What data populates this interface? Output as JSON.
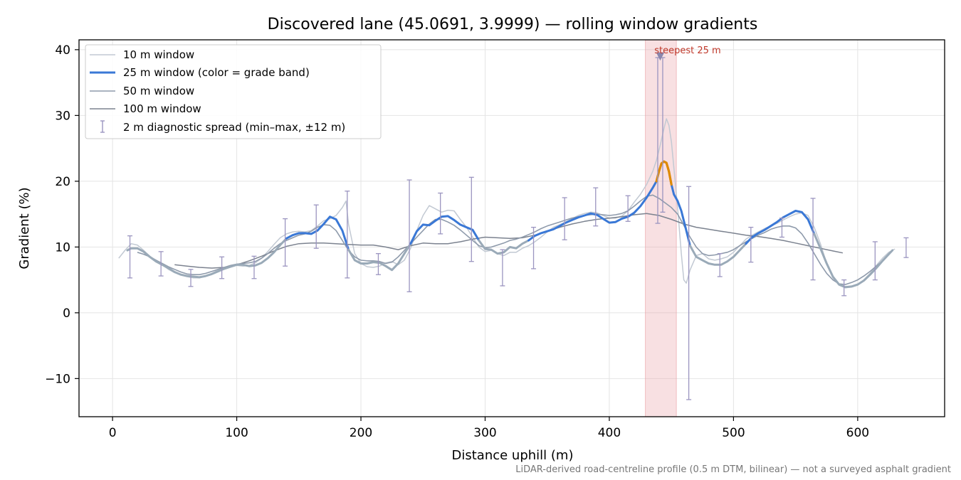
{
  "chart_data": {
    "type": "line",
    "title": "Discovered lane (45.0691, 3.9999) — rolling window gradients",
    "xlabel": "Distance uphill (m)",
    "ylabel": "Gradient (%)",
    "xlim": [
      -27,
      670
    ],
    "ylim": [
      -15.8,
      41.5
    ],
    "x_ticks": [
      0,
      100,
      200,
      300,
      400,
      500,
      600
    ],
    "y_ticks": [
      -10,
      0,
      10,
      20,
      30,
      40
    ],
    "x_tick_labels": [
      "0",
      "100",
      "200",
      "300",
      "400",
      "500",
      "600"
    ],
    "y_tick_labels": [
      "−10",
      "0",
      "10",
      "20",
      "30",
      "40"
    ],
    "grid": true,
    "legend_position": "top-left",
    "colors": {
      "w10": "#c2c9d3",
      "w25_main": "#3a78d6",
      "w25_base": "#9aaab8",
      "w25_steep": "#e08a00",
      "w50": "#8e9aab",
      "w100": "#7b828f",
      "errorbar": "#9b95c0",
      "steep_band": "#e9a0a4"
    },
    "legend": [
      {
        "label": "10 m window",
        "style": "thin-line",
        "color": "#c2c9d3"
      },
      {
        "label": "25 m window (color = grade band)",
        "style": "thick-line",
        "color": "#3a78d6"
      },
      {
        "label": "50 m window",
        "style": "thin-line",
        "color": "#8e9aab"
      },
      {
        "label": "100 m window",
        "style": "thin-line",
        "color": "#7b828f"
      },
      {
        "label": "2 m diagnostic spread (min–max, ±12 m)",
        "style": "errorbar",
        "color": "#9b95c0"
      }
    ],
    "steepest_band": {
      "x_start": 429,
      "x_end": 454,
      "label": "steepest 25 m",
      "marker_x": 441,
      "marker_y": 39.0
    },
    "series": [
      {
        "key": "w10",
        "x": [
          5,
          10,
          15,
          20,
          25,
          30,
          35,
          40,
          45,
          50,
          55,
          60,
          65,
          70,
          75,
          80,
          85,
          90,
          95,
          100,
          105,
          110,
          115,
          120,
          125,
          130,
          135,
          140,
          145,
          150,
          155,
          160,
          165,
          170,
          175,
          180,
          185,
          188,
          190,
          195,
          200,
          205,
          210,
          215,
          220,
          225,
          230,
          235,
          240,
          245,
          250,
          255,
          260,
          265,
          270,
          275,
          280,
          285,
          290,
          295,
          300,
          305,
          310,
          315,
          320,
          325,
          330,
          335,
          340,
          345,
          350,
          355,
          360,
          365,
          370,
          375,
          380,
          385,
          390,
          395,
          400,
          405,
          410,
          415,
          420,
          425,
          430,
          435,
          438,
          441,
          444,
          446,
          448,
          450,
          452,
          455,
          458,
          460,
          462,
          465,
          470,
          475,
          480,
          485,
          490,
          495,
          500,
          505,
          510,
          515,
          520,
          525,
          530,
          535,
          540,
          545,
          550,
          555,
          560,
          565,
          570,
          575,
          580,
          585,
          590,
          595,
          600,
          605,
          610,
          615,
          620,
          625,
          630
        ],
        "y": [
          8.3,
          9.5,
          10.5,
          10.3,
          9.5,
          8.6,
          8.0,
          7.3,
          6.6,
          6.1,
          5.8,
          5.5,
          5.3,
          5.3,
          5.6,
          6.0,
          6.5,
          6.8,
          7.1,
          7.2,
          7.1,
          7.2,
          7.6,
          8.3,
          9.3,
          10.4,
          11.4,
          12.0,
          12.3,
          12.4,
          12.3,
          12.5,
          13.2,
          14.0,
          14.3,
          14.8,
          16.0,
          17.0,
          13.5,
          9.0,
          7.5,
          7.0,
          6.9,
          7.1,
          7.6,
          7.8,
          7.3,
          8.0,
          9.8,
          12.5,
          14.8,
          16.3,
          15.8,
          15.3,
          15.6,
          15.5,
          14.2,
          13.0,
          11.5,
          10.0,
          9.3,
          9.5,
          9.0,
          8.7,
          9.2,
          9.2,
          9.8,
          10.2,
          10.8,
          11.5,
          12.3,
          13.0,
          13.4,
          13.8,
          14.3,
          14.8,
          15.1,
          15.3,
          15.2,
          14.8,
          14.4,
          14.4,
          14.7,
          15.5,
          16.8,
          18.0,
          19.5,
          21.5,
          23.2,
          25.5,
          28.0,
          29.5,
          28.5,
          26.0,
          22.0,
          16.0,
          9.0,
          5.0,
          4.5,
          6.5,
          8.7,
          9.0,
          8.2,
          8.0,
          8.2,
          8.5,
          9.2,
          10.2,
          11.2,
          11.8,
          12.3,
          12.8,
          13.2,
          13.6,
          14.1,
          14.6,
          15.0,
          15.2,
          14.8,
          13.0,
          10.5,
          7.5,
          5.3,
          4.2,
          3.8,
          3.9,
          4.2,
          5.0,
          6.0,
          7.2,
          8.3,
          9.2,
          9.7
        ]
      },
      {
        "key": "w25",
        "x": [
          12,
          15,
          20,
          25,
          30,
          35,
          40,
          45,
          50,
          55,
          60,
          65,
          70,
          75,
          80,
          85,
          90,
          95,
          100,
          105,
          110,
          115,
          120,
          125,
          130,
          135,
          140,
          145,
          150,
          155,
          160,
          165,
          170,
          175,
          180,
          185,
          190,
          195,
          200,
          205,
          210,
          215,
          220,
          225,
          230,
          235,
          240,
          245,
          250,
          255,
          260,
          265,
          270,
          275,
          280,
          285,
          290,
          295,
          300,
          305,
          310,
          315,
          320,
          325,
          330,
          335,
          340,
          345,
          350,
          355,
          360,
          365,
          370,
          375,
          380,
          385,
          390,
          395,
          400,
          405,
          410,
          415,
          420,
          425,
          430,
          435,
          438,
          440,
          442,
          444,
          446,
          448,
          450,
          452,
          455,
          458,
          460,
          462,
          465,
          470,
          475,
          480,
          485,
          490,
          495,
          500,
          505,
          510,
          515,
          520,
          525,
          530,
          535,
          540,
          545,
          550,
          555,
          560,
          565,
          570,
          575,
          580,
          585,
          590,
          595,
          600,
          605,
          610,
          615,
          620,
          625,
          628
        ],
        "y": [
          9.5,
          9.8,
          9.8,
          9.3,
          8.5,
          7.8,
          7.3,
          6.8,
          6.2,
          5.8,
          5.6,
          5.5,
          5.4,
          5.6,
          5.9,
          6.3,
          6.7,
          7.0,
          7.3,
          7.3,
          7.1,
          7.2,
          7.6,
          8.3,
          9.2,
          10.3,
          11.3,
          11.8,
          12.1,
          12.1,
          12.0,
          12.5,
          13.5,
          14.6,
          14.2,
          12.5,
          9.6,
          8.0,
          7.5,
          7.5,
          7.7,
          7.6,
          7.1,
          6.5,
          7.5,
          9.0,
          10.5,
          12.4,
          13.4,
          13.3,
          14.0,
          14.6,
          14.7,
          14.1,
          13.4,
          13.0,
          12.6,
          11.0,
          9.7,
          9.6,
          9.0,
          9.2,
          10.0,
          9.8,
          10.5,
          11.0,
          11.7,
          12.1,
          12.4,
          12.7,
          13.2,
          13.7,
          14.1,
          14.5,
          14.8,
          15.1,
          14.9,
          14.3,
          13.7,
          13.8,
          14.3,
          14.6,
          15.2,
          16.2,
          17.5,
          19.0,
          20.0,
          21.5,
          22.7,
          23.0,
          22.8,
          21.5,
          19.5,
          18.0,
          17.0,
          15.5,
          14.0,
          12.5,
          10.2,
          8.5,
          8.0,
          7.5,
          7.3,
          7.3,
          7.8,
          8.5,
          9.5,
          10.5,
          11.5,
          12.1,
          12.6,
          13.2,
          13.8,
          14.5,
          15.0,
          15.5,
          15.3,
          14.2,
          12.0,
          9.8,
          7.5,
          5.5,
          4.3,
          3.9,
          4.0,
          4.3,
          4.9,
          5.8,
          6.8,
          7.9,
          8.9,
          9.5
        ]
      },
      {
        "key": "w50",
        "x": [
          20,
          25,
          30,
          35,
          40,
          45,
          50,
          55,
          60,
          65,
          70,
          75,
          80,
          85,
          90,
          95,
          100,
          105,
          110,
          115,
          120,
          125,
          130,
          135,
          140,
          145,
          150,
          155,
          160,
          165,
          170,
          175,
          180,
          185,
          190,
          195,
          200,
          205,
          210,
          215,
          220,
          225,
          230,
          235,
          240,
          245,
          250,
          255,
          260,
          265,
          270,
          275,
          280,
          285,
          290,
          295,
          300,
          305,
          310,
          315,
          320,
          325,
          330,
          335,
          340,
          345,
          350,
          355,
          360,
          365,
          370,
          375,
          380,
          385,
          390,
          395,
          400,
          405,
          410,
          415,
          420,
          425,
          430,
          435,
          440,
          445,
          450,
          455,
          460,
          465,
          470,
          475,
          480,
          485,
          490,
          495,
          500,
          505,
          510,
          515,
          520,
          525,
          530,
          535,
          540,
          545,
          550,
          555,
          560,
          565,
          570,
          575,
          580,
          585,
          590,
          595,
          600,
          605,
          610,
          615,
          620
        ],
        "y": [
          9.2,
          8.9,
          8.5,
          8.0,
          7.5,
          7.0,
          6.6,
          6.2,
          5.9,
          5.8,
          5.8,
          6.0,
          6.3,
          6.6,
          6.9,
          7.2,
          7.4,
          7.5,
          7.6,
          7.8,
          8.3,
          9.0,
          9.8,
          10.5,
          11.0,
          11.4,
          11.8,
          12.0,
          12.4,
          13.0,
          13.4,
          13.3,
          12.5,
          11.0,
          9.5,
          8.5,
          8.0,
          7.9,
          7.9,
          7.8,
          7.5,
          7.7,
          8.5,
          9.5,
          10.5,
          11.5,
          12.5,
          13.5,
          14.2,
          14.2,
          13.8,
          13.3,
          12.6,
          11.8,
          11.0,
          10.2,
          9.9,
          10.0,
          10.3,
          10.6,
          11.0,
          11.2,
          11.5,
          11.9,
          12.3,
          12.8,
          13.2,
          13.5,
          13.8,
          14.1,
          14.4,
          14.6,
          14.8,
          14.9,
          15.0,
          14.9,
          14.8,
          14.9,
          15.1,
          15.5,
          16.2,
          17.0,
          17.7,
          17.9,
          17.4,
          16.7,
          16.0,
          15.0,
          13.3,
          11.5,
          10.0,
          9.0,
          8.7,
          8.8,
          9.0,
          9.2,
          9.6,
          10.2,
          10.8,
          11.3,
          11.8,
          12.2,
          12.7,
          13.0,
          13.2,
          13.2,
          12.9,
          12.0,
          10.6,
          9.0,
          7.4,
          6.0,
          5.0,
          4.4,
          4.3,
          4.6,
          5.0,
          5.6,
          6.3,
          7.1,
          7.9
        ]
      },
      {
        "key": "w100",
        "x": [
          50,
          60,
          70,
          80,
          90,
          100,
          110,
          120,
          130,
          140,
          150,
          160,
          170,
          180,
          190,
          200,
          210,
          220,
          230,
          240,
          250,
          260,
          270,
          280,
          290,
          300,
          310,
          320,
          330,
          340,
          350,
          360,
          370,
          380,
          390,
          400,
          410,
          420,
          430,
          440,
          450,
          460,
          470,
          480,
          490,
          500,
          510,
          520,
          530,
          540,
          550,
          560,
          570,
          580,
          588
        ],
        "y": [
          7.3,
          7.1,
          6.9,
          6.8,
          6.9,
          7.3,
          7.9,
          8.6,
          9.4,
          10.1,
          10.5,
          10.6,
          10.6,
          10.5,
          10.4,
          10.3,
          10.3,
          10.0,
          9.6,
          10.2,
          10.6,
          10.5,
          10.5,
          10.8,
          11.2,
          11.5,
          11.4,
          11.3,
          11.4,
          11.8,
          12.4,
          13.0,
          13.5,
          13.9,
          14.2,
          14.4,
          14.6,
          14.9,
          15.1,
          14.8,
          14.2,
          13.5,
          13.0,
          12.7,
          12.4,
          12.1,
          11.8,
          11.6,
          11.3,
          11.0,
          10.6,
          10.2,
          9.8,
          9.4,
          9.1
        ]
      }
    ],
    "steep_segment": {
      "x": [
        438,
        440,
        442,
        444,
        446,
        448,
        450
      ],
      "y": [
        20.0,
        21.5,
        22.7,
        23.0,
        22.8,
        21.5,
        19.5
      ]
    },
    "errorbars": [
      {
        "x": 14,
        "y_min": 5.3,
        "y_max": 11.7
      },
      {
        "x": 39,
        "y_min": 5.6,
        "y_max": 9.3
      },
      {
        "x": 63,
        "y_min": 4.0,
        "y_max": 6.6
      },
      {
        "x": 88,
        "y_min": 5.2,
        "y_max": 8.5
      },
      {
        "x": 114,
        "y_min": 5.2,
        "y_max": 8.6
      },
      {
        "x": 139,
        "y_min": 7.1,
        "y_max": 14.3
      },
      {
        "x": 164,
        "y_min": 9.8,
        "y_max": 16.4
      },
      {
        "x": 189,
        "y_min": 5.3,
        "y_max": 18.5
      },
      {
        "x": 214,
        "y_min": 5.8,
        "y_max": 9.0
      },
      {
        "x": 239,
        "y_min": 3.2,
        "y_max": 20.2
      },
      {
        "x": 264,
        "y_min": 12.0,
        "y_max": 18.2
      },
      {
        "x": 289,
        "y_min": 7.8,
        "y_max": 20.6
      },
      {
        "x": 314,
        "y_min": 4.1,
        "y_max": 9.6
      },
      {
        "x": 339,
        "y_min": 6.7,
        "y_max": 13.0
      },
      {
        "x": 364,
        "y_min": 11.1,
        "y_max": 17.5
      },
      {
        "x": 389,
        "y_min": 13.2,
        "y_max": 19.0
      },
      {
        "x": 415,
        "y_min": 13.9,
        "y_max": 17.8
      },
      {
        "x": 439,
        "y_min": 13.6,
        "y_max": 38.8
      },
      {
        "x": 443,
        "y_min": 15.3,
        "y_max": 38.8
      },
      {
        "x": 464,
        "y_min": -13.2,
        "y_max": 19.2
      },
      {
        "x": 489,
        "y_min": 5.5,
        "y_max": 9.0
      },
      {
        "x": 514,
        "y_min": 7.7,
        "y_max": 13.0
      },
      {
        "x": 539,
        "y_min": 11.5,
        "y_max": 14.4
      },
      {
        "x": 564,
        "y_min": 5.0,
        "y_max": 17.4
      },
      {
        "x": 589,
        "y_min": 2.6,
        "y_max": 5.0
      },
      {
        "x": 614,
        "y_min": 5.0,
        "y_max": 10.8
      },
      {
        "x": 639,
        "y_min": 8.4,
        "y_max": 11.4
      }
    ],
    "footer": "LiDAR-derived road-centreline profile (0.5 m DTM, bilinear) — not a surveyed asphalt gradient"
  }
}
